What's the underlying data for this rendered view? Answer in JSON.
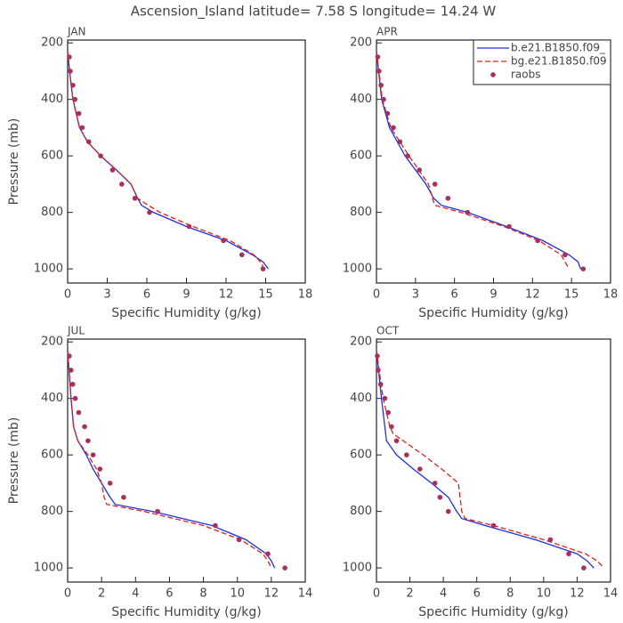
{
  "title": "Ascension_Island  latitude= 7.58 S longitude= 14.24 W",
  "chart_data": [
    {
      "type": "line",
      "title": "JAN",
      "xlabel": "Specific Humidity (g/kg)",
      "ylabel": "Pressure (mb)",
      "xlim": [
        0,
        18
      ],
      "xticks": [
        0,
        3,
        6,
        9,
        12,
        15,
        18
      ],
      "ylim": [
        1050,
        190
      ],
      "yticks": [
        200,
        400,
        600,
        800,
        1000
      ],
      "legend": false,
      "series": [
        {
          "kind": "line",
          "color": "#1f2fe0",
          "dash": "solid",
          "x": [
            0,
            0.15,
            0.4,
            0.9,
            1.5,
            2.5,
            3.7,
            4.8,
            5.3,
            5.6,
            6.5,
            9,
            12,
            14,
            14.8,
            15.2
          ],
          "y": [
            230,
            300,
            400,
            500,
            550,
            600,
            650,
            700,
            750,
            775,
            800,
            850,
            900,
            950,
            975,
            1000
          ]
        },
        {
          "kind": "line",
          "color": "#e02020",
          "dash": "dashed",
          "x": [
            0,
            0.15,
            0.4,
            0.9,
            1.5,
            2.5,
            3.7,
            4.8,
            5.3,
            6.1,
            7,
            9.5,
            12.3,
            14.1,
            14.6,
            14.9
          ],
          "y": [
            230,
            300,
            400,
            500,
            550,
            600,
            650,
            700,
            750,
            775,
            800,
            850,
            900,
            950,
            975,
            1000
          ]
        },
        {
          "kind": "scatter",
          "color": "#a8305e",
          "x": [
            0.13,
            0.2,
            0.4,
            0.55,
            0.85,
            1.1,
            1.6,
            2.5,
            3.4,
            4.1,
            5.1,
            6.2,
            9.2,
            11.8,
            13.2,
            14.8
          ],
          "y": [
            250,
            300,
            350,
            400,
            450,
            500,
            550,
            600,
            650,
            700,
            750,
            800,
            850,
            900,
            950,
            1000
          ]
        }
      ]
    },
    {
      "type": "line",
      "title": "APR",
      "xlabel": "Specific Humidity (g/kg)",
      "xlim": [
        0,
        18
      ],
      "xticks": [
        0,
        3,
        6,
        9,
        12,
        15,
        18
      ],
      "ylim": [
        1050,
        190
      ],
      "yticks": [
        200,
        400,
        600,
        800,
        1000
      ],
      "legend": "upper right",
      "series": [
        {
          "name": "b.e21.B1850.f09_",
          "kind": "line",
          "color": "#1f2fe0",
          "dash": "solid",
          "x": [
            0,
            0.4,
            1.0,
            2.2,
            3.8,
            4.4,
            5,
            7,
            10,
            12.8,
            14.8,
            15.5,
            15.7
          ],
          "y": [
            230,
            400,
            500,
            600,
            700,
            750,
            775,
            800,
            850,
            900,
            950,
            975,
            1000
          ]
        },
        {
          "name": "bg.e21.B1850.f09",
          "kind": "line",
          "color": "#e02020",
          "dash": "dashed",
          "x": [
            0,
            0.45,
            1.1,
            2.5,
            4.0,
            4.3,
            4.5,
            6.5,
            9.8,
            12.5,
            14.2,
            14.5,
            14.8
          ],
          "y": [
            230,
            400,
            500,
            600,
            700,
            750,
            775,
            800,
            850,
            900,
            950,
            975,
            1000
          ]
        },
        {
          "name": "raobs",
          "kind": "scatter",
          "color": "#a8305e",
          "x": [
            0.1,
            0.2,
            0.35,
            0.55,
            0.85,
            1.3,
            1.8,
            2.4,
            3.3,
            4.5,
            5.5,
            7,
            10.2,
            12.4,
            14.5,
            15.9
          ],
          "y": [
            250,
            300,
            350,
            400,
            450,
            500,
            550,
            600,
            650,
            700,
            750,
            800,
            850,
            900,
            950,
            1000
          ]
        }
      ]
    },
    {
      "type": "line",
      "title": "JUL",
      "xlabel": "Specific Humidity (g/kg)",
      "ylabel": "Pressure (mb)",
      "xlim": [
        0,
        14
      ],
      "xticks": [
        0,
        2,
        4,
        6,
        8,
        10,
        12,
        14
      ],
      "ylim": [
        1050,
        190
      ],
      "yticks": [
        200,
        400,
        600,
        800,
        1000
      ],
      "legend": false,
      "series": [
        {
          "kind": "line",
          "color": "#1f2fe0",
          "dash": "solid",
          "x": [
            0,
            0.2,
            0.35,
            0.6,
            1.1,
            1.5,
            2.0,
            2.5,
            2.8,
            5,
            8.5,
            10.5,
            11.7,
            12,
            12.2
          ],
          "y": [
            230,
            400,
            500,
            550,
            600,
            650,
            700,
            750,
            775,
            800,
            850,
            900,
            950,
            975,
            1000
          ]
        },
        {
          "kind": "line",
          "color": "#e02020",
          "dash": "dashed",
          "x": [
            0,
            0.2,
            0.35,
            0.6,
            1.2,
            1.7,
            2.0,
            2.15,
            2.3,
            4.5,
            8,
            10.2,
            11.5,
            11.8,
            12.0
          ],
          "y": [
            230,
            400,
            500,
            550,
            600,
            650,
            700,
            750,
            775,
            800,
            850,
            900,
            950,
            975,
            1000
          ]
        },
        {
          "kind": "scatter",
          "color": "#a8305e",
          "x": [
            0.1,
            0.2,
            0.3,
            0.45,
            0.65,
            1.0,
            1.2,
            1.5,
            1.9,
            2.5,
            3.3,
            5.3,
            8.7,
            10.1,
            11.8,
            12.8
          ],
          "y": [
            250,
            300,
            350,
            400,
            450,
            500,
            550,
            600,
            650,
            700,
            750,
            800,
            850,
            900,
            950,
            1000
          ]
        }
      ]
    },
    {
      "type": "line",
      "title": "OCT",
      "xlabel": "Specific Humidity (g/kg)",
      "xlim": [
        0,
        14
      ],
      "xticks": [
        0,
        2,
        4,
        6,
        8,
        10,
        12,
        14
      ],
      "ylim": [
        1050,
        190
      ],
      "yticks": [
        200,
        400,
        600,
        800,
        1000
      ],
      "legend": false,
      "series": [
        {
          "kind": "line",
          "color": "#1f2fe0",
          "dash": "solid",
          "x": [
            0,
            0.3,
            0.5,
            0.6,
            1.2,
            2.2,
            3.3,
            4.3,
            4.8,
            5.1,
            6.5,
            9.5,
            12,
            12.6,
            13.0
          ],
          "y": [
            230,
            400,
            500,
            550,
            600,
            650,
            700,
            750,
            800,
            825,
            850,
            900,
            950,
            975,
            1000
          ]
        },
        {
          "kind": "line",
          "color": "#e02020",
          "dash": "dashed",
          "x": [
            0,
            0.4,
            0.8,
            1.0,
            2.8,
            3.9,
            4.9,
            5.0,
            5.1,
            5.3,
            7,
            10,
            12.5,
            13.2,
            13.6
          ],
          "y": [
            230,
            400,
            500,
            525,
            600,
            650,
            700,
            750,
            800,
            825,
            850,
            900,
            950,
            975,
            1000
          ]
        },
        {
          "kind": "scatter",
          "color": "#a8305e",
          "x": [
            0.05,
            0.1,
            0.25,
            0.5,
            0.7,
            0.9,
            1.2,
            1.8,
            2.6,
            3.5,
            3.8,
            4.3,
            7,
            10.4,
            11.5,
            12.4
          ],
          "y": [
            250,
            300,
            350,
            400,
            450,
            500,
            550,
            600,
            650,
            700,
            750,
            800,
            850,
            900,
            950,
            1000
          ]
        }
      ]
    }
  ]
}
